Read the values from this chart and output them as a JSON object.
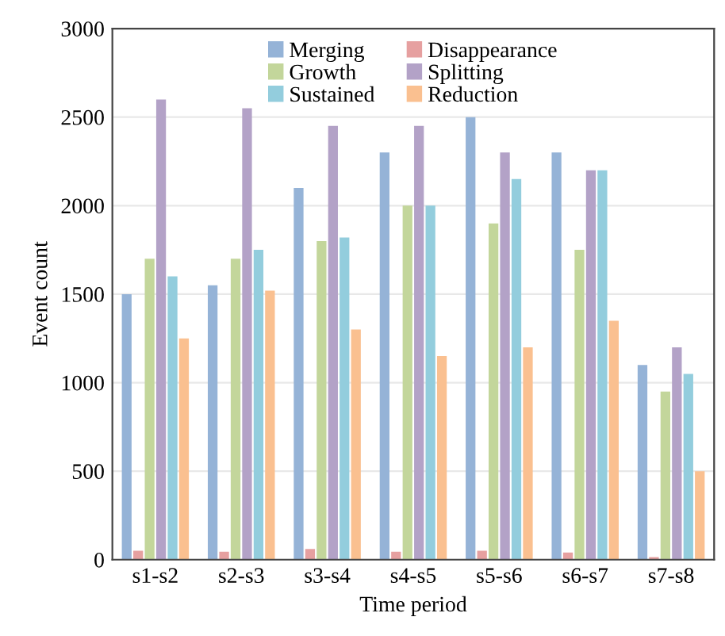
{
  "chart_data": {
    "type": "bar",
    "xlabel": "Time period",
    "ylabel": "Event count",
    "categories": [
      "s1-s2",
      "s2-s3",
      "s3-s4",
      "s4-s5",
      "s5-s6",
      "s6-s7",
      "s7-s8"
    ],
    "series": [
      {
        "name": "Merging",
        "color": "#95b3d7",
        "values": [
          1500,
          1550,
          2100,
          2300,
          2500,
          2300,
          1100
        ]
      },
      {
        "name": "Disappearance",
        "color": "#e6a0a0",
        "values": [
          50,
          45,
          60,
          45,
          50,
          40,
          15
        ]
      },
      {
        "name": "Growth",
        "color": "#c3d69b",
        "values": [
          1700,
          1700,
          1800,
          2000,
          1900,
          1750,
          950
        ]
      },
      {
        "name": "Splitting",
        "color": "#b3a2c7",
        "values": [
          2600,
          2550,
          2450,
          2450,
          2300,
          2200,
          1200
        ]
      },
      {
        "name": "Sustained",
        "color": "#93cddd",
        "values": [
          1600,
          1750,
          1820,
          2000,
          2150,
          2200,
          1050
        ]
      },
      {
        "name": "Reduction",
        "color": "#fac090",
        "values": [
          1250,
          1520,
          1300,
          1150,
          1200,
          1350,
          500
        ]
      }
    ],
    "ylim": [
      0,
      3000
    ],
    "yticks": [
      0,
      500,
      1000,
      1500,
      2000,
      2500,
      3000
    ],
    "grid": "y",
    "legend": "top"
  }
}
